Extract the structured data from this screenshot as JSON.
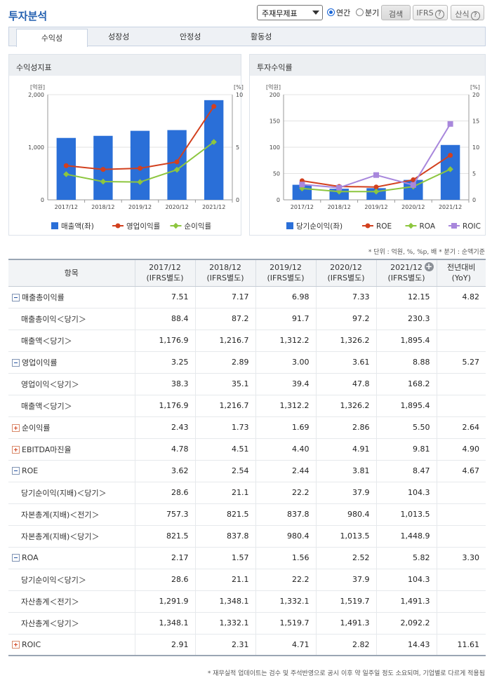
{
  "header": {
    "title": "투자분석"
  },
  "controls": {
    "report_select": "주재무제표",
    "radio_annual": "연간",
    "radio_quarter": "분기",
    "search_button": "검색",
    "ifrs_button": "IFRS",
    "formula_button": "산식",
    "help": "?"
  },
  "tabs": [
    "수익성",
    "성장성",
    "안정성",
    "활동성"
  ],
  "panels": {
    "left_title": "수익성지표",
    "right_title": "투자수익률"
  },
  "chart_data": [
    {
      "type": "bar",
      "title": "수익성지표",
      "categories": [
        "2017/12",
        "2018/12",
        "2019/12",
        "2020/12",
        "2021/12"
      ],
      "left_unit": "[억원]",
      "right_unit": "[%]",
      "y_left_ticks": [
        "2,000",
        "1,000",
        "0"
      ],
      "y_right_ticks": [
        "10",
        "5",
        "0"
      ],
      "y_left_range": [
        0,
        2000
      ],
      "y_right_range": [
        0,
        10
      ],
      "series": [
        {
          "name": "매출액(좌)",
          "kind": "bar",
          "axis": "left",
          "color": "#2a6fd8",
          "values": [
            1176.9,
            1216.7,
            1312.2,
            1326.2,
            1895.4
          ]
        },
        {
          "name": "영업이익률",
          "kind": "line",
          "axis": "right",
          "color": "#d2401e",
          "values": [
            3.25,
            2.89,
            3.0,
            3.61,
            8.88
          ]
        },
        {
          "name": "순이익률",
          "kind": "line",
          "axis": "right",
          "color": "#8dc63f",
          "values": [
            2.43,
            1.73,
            1.69,
            2.86,
            5.5
          ]
        }
      ]
    },
    {
      "type": "bar",
      "title": "투자수익률",
      "categories": [
        "2017/12",
        "2018/12",
        "2019/12",
        "2020/12",
        "2021/12"
      ],
      "left_unit": "[억원]",
      "right_unit": "[%]",
      "y_left_ticks": [
        "200",
        "150",
        "100",
        "50",
        "0"
      ],
      "y_right_ticks": [
        "20",
        "15",
        "10",
        "5",
        "0"
      ],
      "y_left_range": [
        0,
        200
      ],
      "y_right_range": [
        0,
        20
      ],
      "series": [
        {
          "name": "당기순이익(좌)",
          "kind": "bar",
          "axis": "left",
          "color": "#2a6fd8",
          "values": [
            28.6,
            21.1,
            22.2,
            37.9,
            104.3
          ]
        },
        {
          "name": "ROE",
          "kind": "line",
          "axis": "right",
          "color": "#d2401e",
          "values": [
            3.62,
            2.54,
            2.44,
            3.81,
            8.47
          ]
        },
        {
          "name": "ROA",
          "kind": "line",
          "axis": "right",
          "color": "#8dc63f",
          "values": [
            2.17,
            1.57,
            1.56,
            2.52,
            5.82
          ]
        },
        {
          "name": "ROIC",
          "kind": "line",
          "axis": "right",
          "color": "#a887dc",
          "values": [
            2.91,
            2.31,
            4.71,
            2.82,
            14.43
          ]
        }
      ]
    }
  ],
  "notes": {
    "unit_note": "* 단위 : 억원, %, %p, 배   * 분기 : 순액기준",
    "bottom_note": "* 재무실적 업데이트는 검수 및 주석반영으로 공시 이후 약 일주일 정도 소요되며, 기업별로 다르게 적용됨"
  },
  "table": {
    "headers": [
      {
        "line1": "항목",
        "line2": ""
      },
      {
        "line1": "2017/12",
        "line2": "(IFRS별도)"
      },
      {
        "line1": "2018/12",
        "line2": "(IFRS별도)"
      },
      {
        "line1": "2019/12",
        "line2": "(IFRS별도)"
      },
      {
        "line1": "2020/12",
        "line2": "(IFRS별도)"
      },
      {
        "line1": "2021/12",
        "line2": "(IFRS별도)"
      },
      {
        "line1": "전년대비",
        "line2": "(YoY)"
      }
    ],
    "rows": [
      {
        "label": "매출총이익률",
        "level": 0,
        "toggle": "minus",
        "values": [
          "7.51",
          "7.17",
          "6.98",
          "7.33",
          "12.15",
          "4.82"
        ]
      },
      {
        "label": "매출총이익＜당기＞",
        "level": 1,
        "values": [
          "88.4",
          "87.2",
          "91.7",
          "97.2",
          "230.3",
          ""
        ]
      },
      {
        "label": "매출액＜당기＞",
        "level": 1,
        "values": [
          "1,176.9",
          "1,216.7",
          "1,312.2",
          "1,326.2",
          "1,895.4",
          ""
        ]
      },
      {
        "label": "영업이익률",
        "level": 0,
        "toggle": "minus",
        "values": [
          "3.25",
          "2.89",
          "3.00",
          "3.61",
          "8.88",
          "5.27"
        ]
      },
      {
        "label": "영업이익＜당기＞",
        "level": 1,
        "values": [
          "38.3",
          "35.1",
          "39.4",
          "47.8",
          "168.2",
          ""
        ]
      },
      {
        "label": "매출액＜당기＞",
        "level": 1,
        "values": [
          "1,176.9",
          "1,216.7",
          "1,312.2",
          "1,326.2",
          "1,895.4",
          ""
        ]
      },
      {
        "label": "순이익률",
        "level": 0,
        "toggle": "plus",
        "values": [
          "2.43",
          "1.73",
          "1.69",
          "2.86",
          "5.50",
          "2.64"
        ]
      },
      {
        "label": "EBITDA마진율",
        "level": 0,
        "toggle": "plus",
        "values": [
          "4.78",
          "4.51",
          "4.40",
          "4.91",
          "9.81",
          "4.90"
        ]
      },
      {
        "label": "ROE",
        "level": 0,
        "toggle": "minus",
        "values": [
          "3.62",
          "2.54",
          "2.44",
          "3.81",
          "8.47",
          "4.67"
        ]
      },
      {
        "label": "당기순이익(지배)＜당기＞",
        "level": 1,
        "values": [
          "28.6",
          "21.1",
          "22.2",
          "37.9",
          "104.3",
          ""
        ]
      },
      {
        "label": "자본총계(지배)＜전기＞",
        "level": 1,
        "values": [
          "757.3",
          "821.5",
          "837.8",
          "980.4",
          "1,013.5",
          ""
        ]
      },
      {
        "label": "자본총계(지배)＜당기＞",
        "level": 1,
        "values": [
          "821.5",
          "837.8",
          "980.4",
          "1,013.5",
          "1,448.9",
          ""
        ]
      },
      {
        "label": "ROA",
        "level": 0,
        "toggle": "minus",
        "values": [
          "2.17",
          "1.57",
          "1.56",
          "2.52",
          "5.82",
          "3.30"
        ]
      },
      {
        "label": "당기순이익＜당기＞",
        "level": 1,
        "values": [
          "28.6",
          "21.1",
          "22.2",
          "37.9",
          "104.3",
          ""
        ]
      },
      {
        "label": "자산총계＜전기＞",
        "level": 1,
        "values": [
          "1,291.9",
          "1,348.1",
          "1,332.1",
          "1,519.7",
          "1,491.3",
          ""
        ]
      },
      {
        "label": "자산총계＜당기＞",
        "level": 1,
        "values": [
          "1,348.1",
          "1,332.1",
          "1,519.7",
          "1,491.3",
          "2,092.2",
          ""
        ]
      },
      {
        "label": "ROIC",
        "level": 0,
        "toggle": "plus",
        "values": [
          "2.91",
          "2.31",
          "4.71",
          "2.82",
          "14.43",
          "11.61"
        ]
      }
    ]
  }
}
